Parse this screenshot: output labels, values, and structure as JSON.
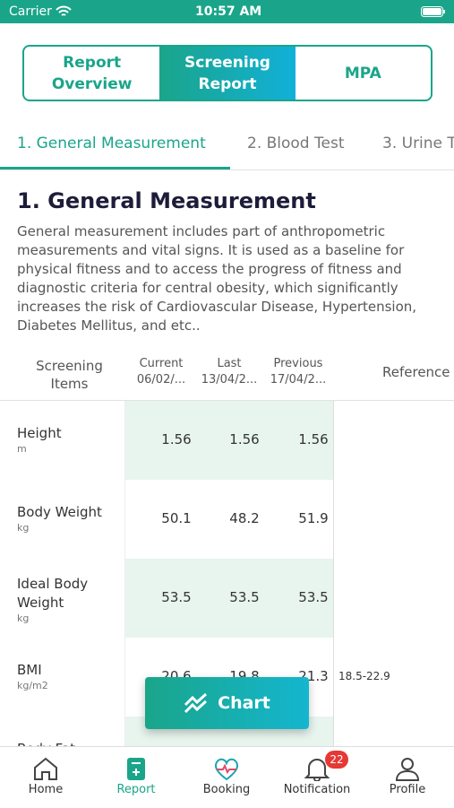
{
  "status_bar": {
    "carrier": "Carrier",
    "time": "10:57 AM"
  },
  "segments": [
    "Report Overview",
    "Screening Report",
    "MPA"
  ],
  "tabs": [
    "1. General Measurement",
    "2. Blood Test",
    "3. Urine T"
  ],
  "section": {
    "title": "1. General Measurement",
    "description": "General measurement includes part of anthropometric measurements and vital signs. It is used as a baseline for physical fitness and to access the progress of fitness and diagnostic criteria for central obesity, which significantly increases the risk of Cardiovascular Disease, Hypertension, Diabetes Mellitus, and etc.."
  },
  "table": {
    "header": {
      "item": "Screening Items",
      "current": "Current",
      "current_date": "06/02/...",
      "last": "Last",
      "last_date": "13/04/2...",
      "previous": "Previous",
      "previous_date": "17/04/2...",
      "reference": "Reference"
    },
    "rows": [
      {
        "name": "Height",
        "unit": "m",
        "current": "1.56",
        "last": "1.56",
        "previous": "1.56"
      },
      {
        "name": "Body Weight",
        "unit": "kg",
        "current": "50.1",
        "last": "48.2",
        "previous": "51.9"
      },
      {
        "name": "Ideal Body Weight",
        "unit": "kg",
        "current": "53.5",
        "last": "53.5",
        "previous": "53.5"
      },
      {
        "name": "BMI",
        "unit": "kg/m2",
        "current": "20.6",
        "last": "19.8",
        "previous": "21.3",
        "reference": "18.5-22.9"
      },
      {
        "name": "Body Fat"
      }
    ]
  },
  "chart_button": "Chart",
  "nav": {
    "items": [
      "Home",
      "Report",
      "Booking",
      "Notification",
      "Profile"
    ],
    "badge": "22"
  }
}
